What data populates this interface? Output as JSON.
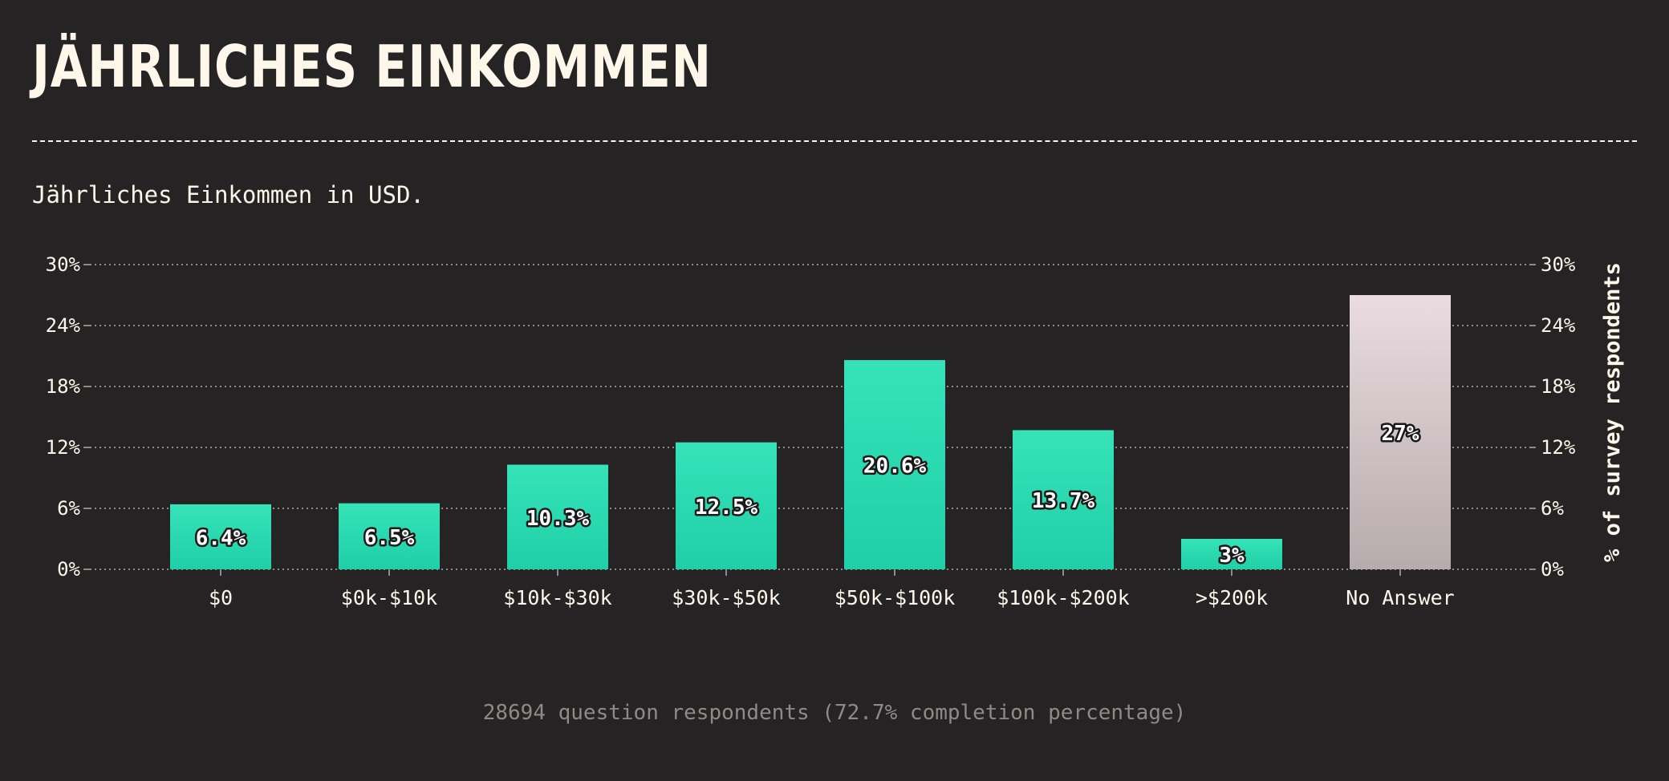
{
  "page": {
    "title": "JÄHRLICHES EINKOMMEN",
    "subtitle": "Jährliches Einkommen in USD.",
    "footer": "28694 question respondents (72.7% completion percentage)"
  },
  "colors": {
    "background": "#262324",
    "text": "#fff8ea",
    "bar_top": "#36e3b9",
    "bar_bottom": "#1fcfa7",
    "no_answer_top": "#eadce0",
    "no_answer_bottom": "#b6abad",
    "grid": "#8e8a88"
  },
  "chart_data": {
    "type": "bar",
    "categories": [
      "$0",
      "$0k-$10k",
      "$10k-$30k",
      "$30k-$50k",
      "$50k-$100k",
      "$100k-$200k",
      ">$200k",
      "No Answer"
    ],
    "values": [
      6.4,
      6.5,
      10.3,
      12.5,
      20.6,
      13.7,
      3,
      27
    ],
    "value_labels": [
      "6.4%",
      "6.5%",
      "10.3%",
      "12.5%",
      "20.6%",
      "13.7%",
      "3%",
      "27%"
    ],
    "highlight_category": "No Answer",
    "ylabel": "% of survey respondents",
    "ylim": [
      0,
      30
    ],
    "yticks": [
      0,
      6,
      12,
      18,
      24,
      30
    ],
    "ytick_labels": [
      "0%",
      "6%",
      "12%",
      "18%",
      "24%",
      "30%"
    ],
    "grid": true,
    "y_axis_both_sides": true
  }
}
